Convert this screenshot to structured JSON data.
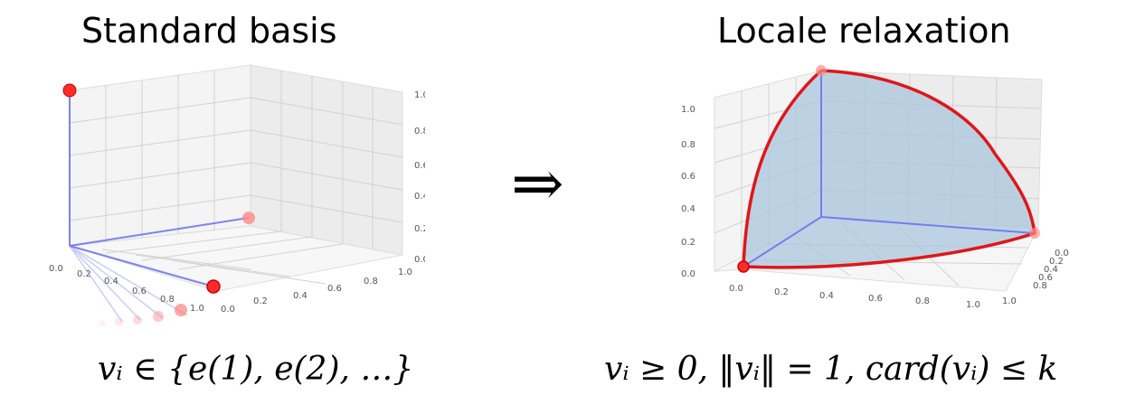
{
  "titles": {
    "left": "Standard basis",
    "right": "Locale relaxation"
  },
  "arrow": "⇒",
  "formulas": {
    "left": "vᵢ ∈ {e(1), e(2), …}",
    "right": "vᵢ ≥ 0,  ‖vᵢ‖ = 1,  card(vᵢ) ≤ k"
  },
  "left_panel": {
    "z_ticks": [
      "1.0",
      "0.8",
      "0.6",
      "0.4",
      "0.2",
      "0.0"
    ],
    "x_ticks": [
      "0.0",
      "0.2",
      "0.4",
      "0.6",
      "0.8",
      "1.0"
    ],
    "y_ticks": [
      "0.0",
      "0.2",
      "0.4",
      "0.6",
      "0.8",
      "1.0"
    ]
  },
  "right_panel": {
    "z_ticks": [
      "1.0",
      "0.8",
      "0.6",
      "0.4",
      "0.2",
      "0.0"
    ],
    "x_ticks": [
      "0.0",
      "0.2",
      "0.4",
      "0.6",
      "0.8",
      "1.0"
    ],
    "y_ticks": [
      "0.0",
      "0.2",
      "0.4",
      "0.6",
      "0.8",
      "1.0"
    ]
  },
  "colors": {
    "axis_line": "#6a6ff0",
    "point": "#ff2a2a",
    "curve": "#e0161a",
    "surface": "#a9c7dc"
  }
}
